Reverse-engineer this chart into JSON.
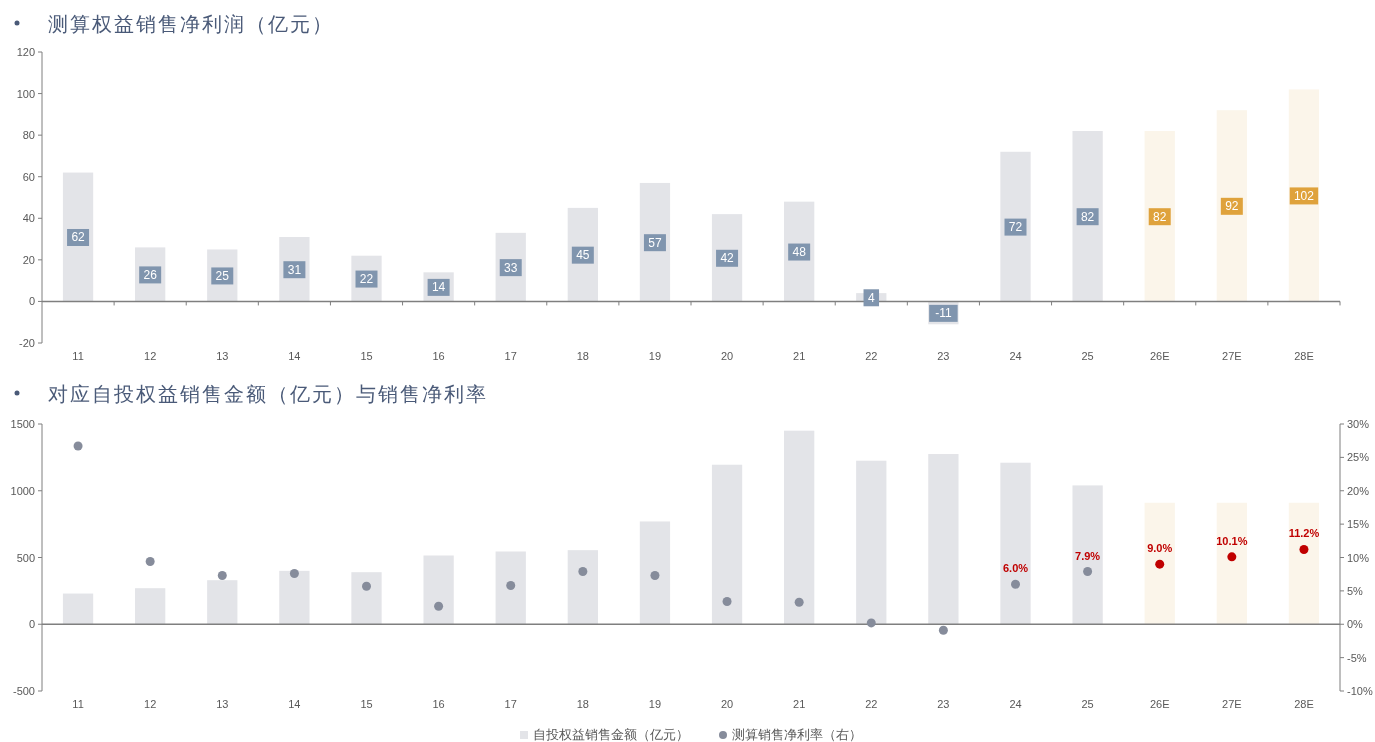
{
  "chart_data": [
    {
      "type": "bar",
      "title": "测算权益销售净利润（亿元）",
      "categories": [
        "11",
        "12",
        "13",
        "14",
        "15",
        "16",
        "17",
        "18",
        "19",
        "20",
        "21",
        "22",
        "23",
        "24",
        "25",
        "26E",
        "27E",
        "28E"
      ],
      "values": [
        62,
        26,
        25,
        31,
        22,
        14,
        33,
        45,
        57,
        42,
        48,
        4,
        -11,
        72,
        82,
        82,
        92,
        102
      ],
      "colors": [
        "#e3e4e8",
        "#e3e4e8",
        "#e3e4e8",
        "#e3e4e8",
        "#e3e4e8",
        "#e3e4e8",
        "#e3e4e8",
        "#e3e4e8",
        "#e3e4e8",
        "#e3e4e8",
        "#e3e4e8",
        "#e3e4e8",
        "#e3e4e8",
        "#e3e4e8",
        "#e3e4e8",
        "#fbf5ea",
        "#fbf5ea",
        "#fbf5ea"
      ],
      "ylim": [
        -20,
        120
      ],
      "yticks": [
        -20,
        0,
        20,
        40,
        60,
        80,
        100,
        120
      ],
      "data_labels": true
    },
    {
      "type": "bar",
      "title": "对应自投权益销售金额（亿元）与销售净利率",
      "categories": [
        "11",
        "12",
        "13",
        "14",
        "15",
        "16",
        "17",
        "18",
        "19",
        "20",
        "21",
        "22",
        "23",
        "24",
        "25",
        "26E",
        "27E",
        "28E"
      ],
      "series": [
        {
          "name": "自投权益销售金额（亿元）",
          "color": "#e3e4e8",
          "colors": [
            "#e3e4e8",
            "#e3e4e8",
            "#e3e4e8",
            "#e3e4e8",
            "#e3e4e8",
            "#e3e4e8",
            "#e3e4e8",
            "#e3e4e8",
            "#e3e4e8",
            "#e3e4e8",
            "#e3e4e8",
            "#e3e4e8",
            "#e3e4e8",
            "#e3e4e8",
            "#e3e4e8",
            "#fbf5ea",
            "#fbf5ea",
            "#fbf5ea"
          ],
          "values": [
            230,
            270,
            330,
            400,
            390,
            515,
            545,
            555,
            770,
            1195,
            1450,
            1225,
            1275,
            1210,
            1040,
            910,
            910,
            910
          ]
        },
        {
          "name": "测算销售净利率（右）",
          "type": "scatter",
          "axis": "y2",
          "color": "#868c9b",
          "colors": [
            "#868c9b",
            "#868c9b",
            "#868c9b",
            "#868c9b",
            "#868c9b",
            "#868c9b",
            "#868c9b",
            "#868c9b",
            "#868c9b",
            "#868c9b",
            "#868c9b",
            "#868c9b",
            "#868c9b",
            "#868c9b",
            "#868c9b",
            "#c00000",
            "#c00000",
            "#c00000"
          ],
          "values": [
            26.7,
            9.4,
            7.3,
            7.6,
            5.7,
            2.7,
            5.8,
            7.9,
            7.3,
            3.4,
            3.3,
            0.2,
            -0.9,
            6.0,
            7.9,
            9.0,
            10.1,
            11.2
          ],
          "value_labels": [
            null,
            null,
            null,
            null,
            null,
            null,
            null,
            null,
            null,
            null,
            null,
            null,
            null,
            "6.0%",
            "7.9%",
            "9.0%",
            "10.1%",
            "11.2%"
          ]
        }
      ],
      "ylim": [
        -500,
        1500
      ],
      "yticks": [
        -500,
        0,
        500,
        1000,
        1500
      ],
      "y2lim": [
        -10,
        30
      ],
      "y2ticks": [
        {
          "value": -10,
          "label": "-10%"
        },
        {
          "value": -5,
          "label": "-5%"
        },
        {
          "value": 0,
          "label": "0%"
        },
        {
          "value": 5,
          "label": "5%"
        },
        {
          "value": 10,
          "label": "10%"
        },
        {
          "value": 15,
          "label": "15%"
        },
        {
          "value": 20,
          "label": "20%"
        },
        {
          "value": 25,
          "label": "25%"
        },
        {
          "value": 30,
          "label": "30%"
        }
      ],
      "legend": "bottom",
      "marker": "circle"
    }
  ]
}
